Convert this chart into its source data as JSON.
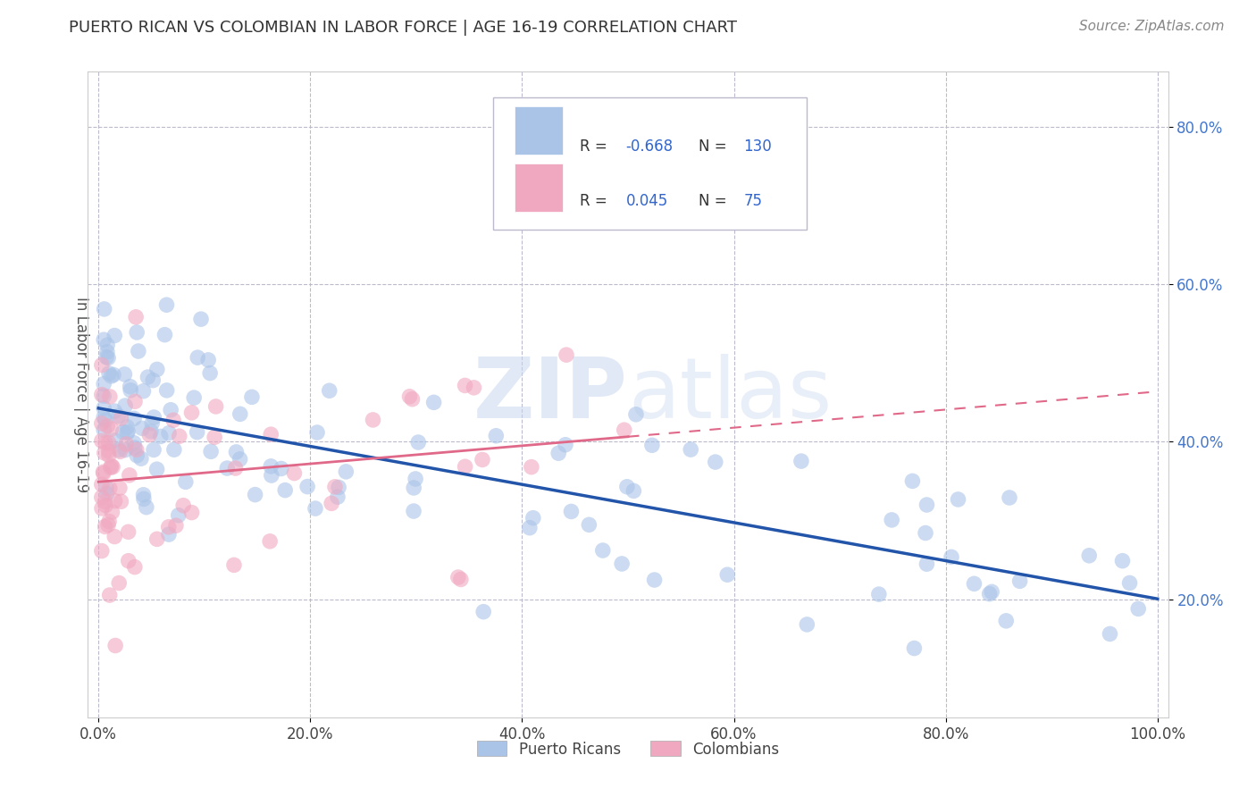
{
  "title": "PUERTO RICAN VS COLOMBIAN IN LABOR FORCE | AGE 16-19 CORRELATION CHART",
  "source": "Source: ZipAtlas.com",
  "ylabel": "In Labor Force | Age 16-19",
  "xlim": [
    -0.01,
    1.01
  ],
  "ylim": [
    0.05,
    0.87
  ],
  "x_ticks": [
    0.0,
    0.2,
    0.4,
    0.6,
    0.8,
    1.0
  ],
  "x_tick_labels": [
    "0.0%",
    "20.0%",
    "40.0%",
    "60.0%",
    "80.0%",
    "100.0%"
  ],
  "y_ticks": [
    0.2,
    0.4,
    0.6,
    0.8
  ],
  "y_tick_labels": [
    "20.0%",
    "40.0%",
    "60.0%",
    "80.0%"
  ],
  "blue_color": "#aac4e8",
  "pink_color": "#f0a8c0",
  "blue_line_color": "#2255aa",
  "pink_line_color": "#e06888",
  "watermark_text": "ZIPatlas",
  "watermark_color": "#c8d8ee",
  "blue_r": "-0.668",
  "blue_n": "130",
  "pink_r": "0.045",
  "pink_n": "75",
  "blue_line_start_y": 0.445,
  "blue_line_end_y": 0.2,
  "pink_line_start_y": 0.345,
  "pink_line_end_y": 0.395,
  "pink_line_full_end_y": 0.415
}
